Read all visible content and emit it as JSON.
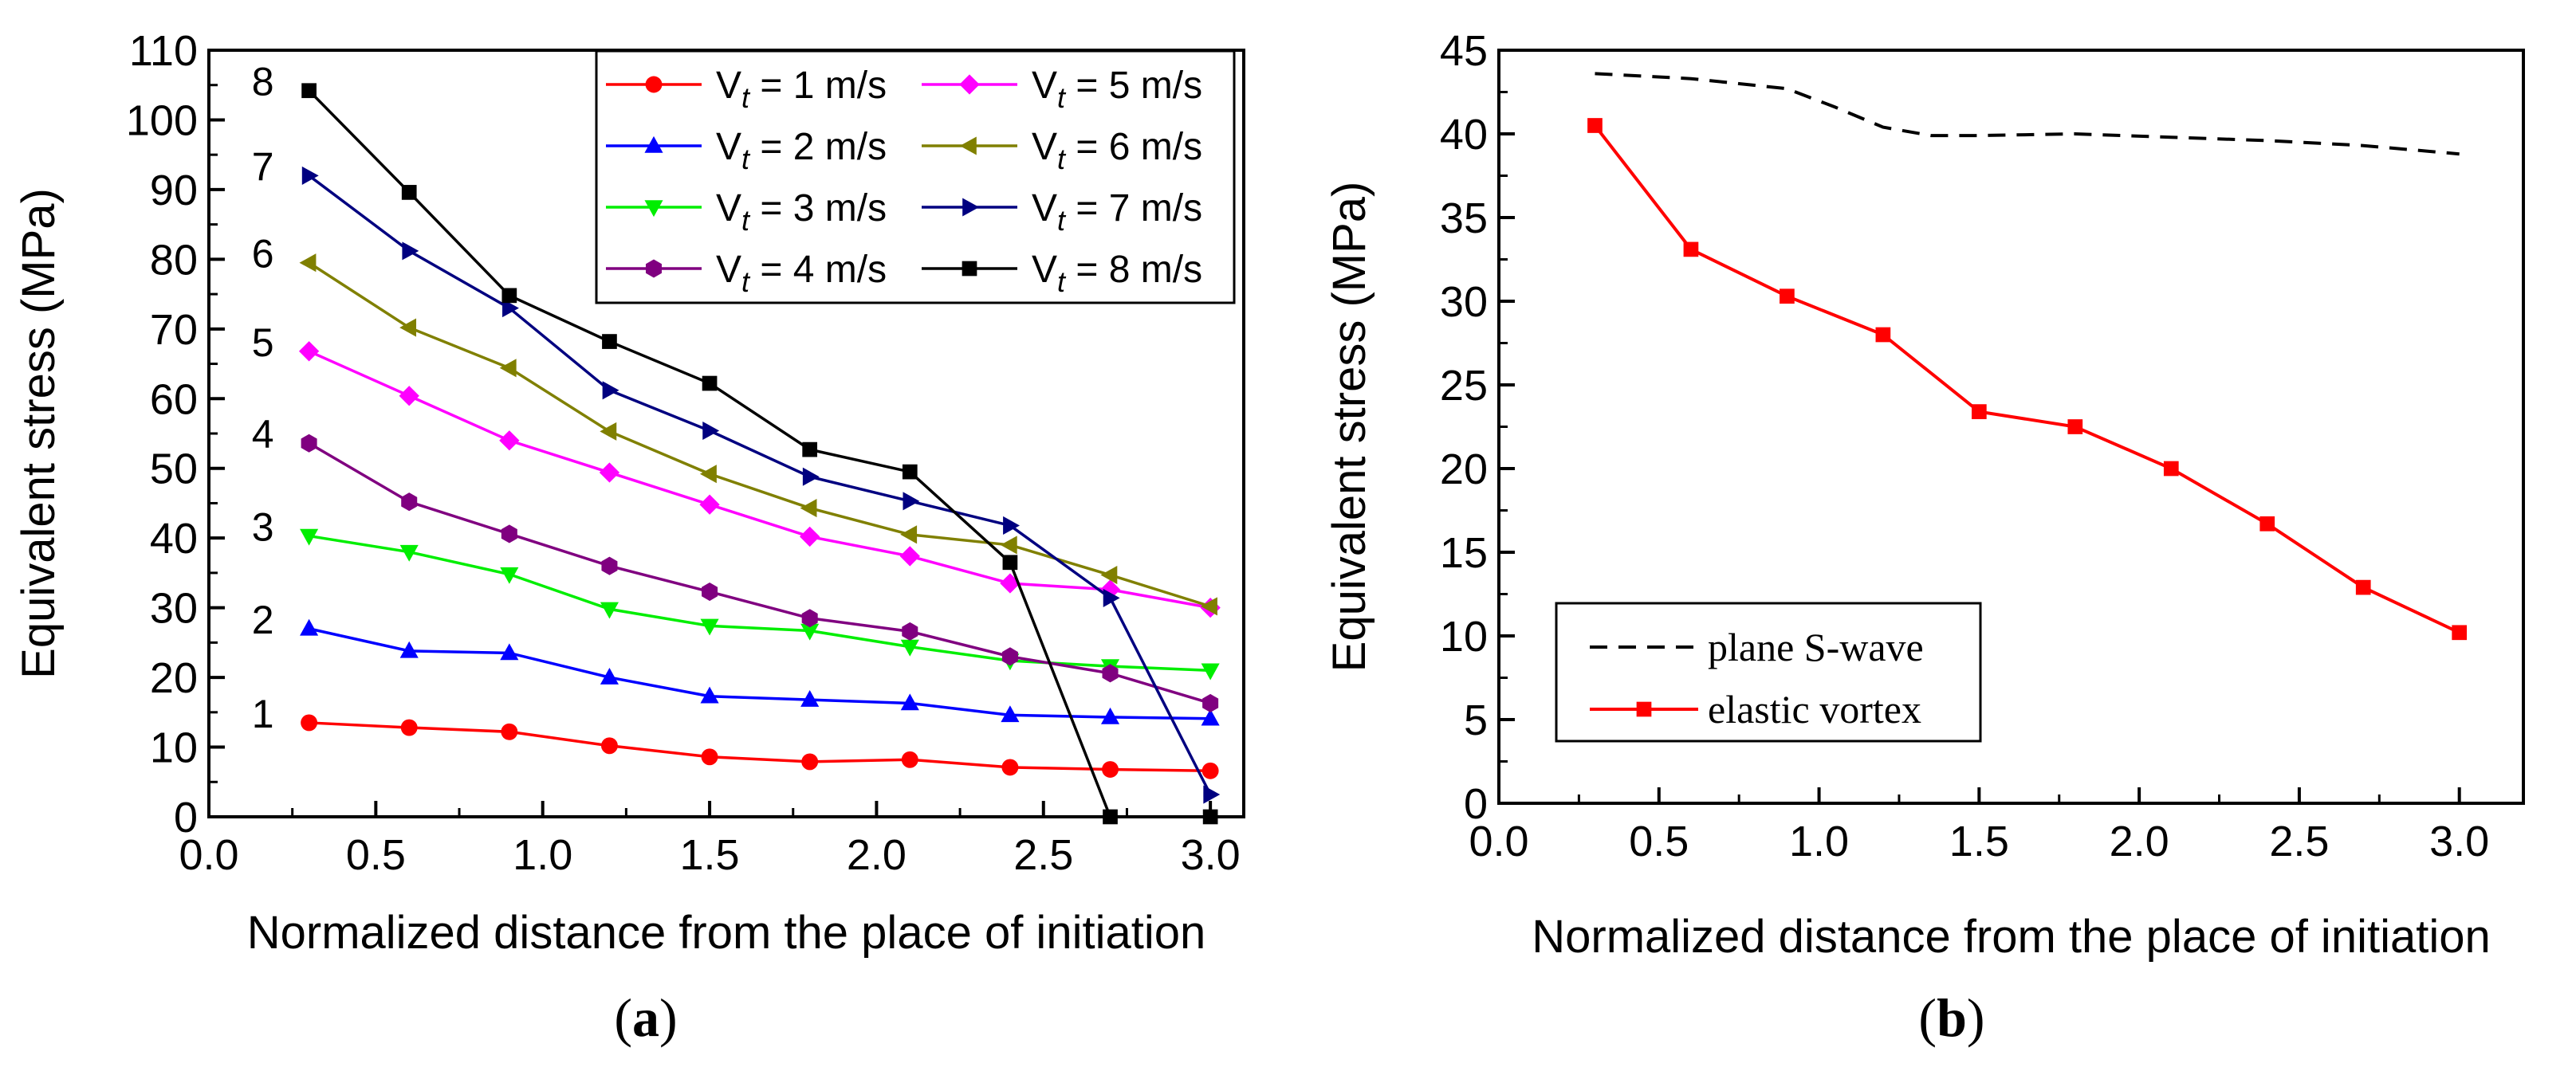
{
  "figure": {
    "panel_a_caption": "a",
    "panel_b_caption": "b"
  },
  "chart_data": [
    {
      "type": "line",
      "panel": "a",
      "xlabel": "Normalized distance from the place of initiation",
      "ylabel": "Equivalent stress (MPa)",
      "xlim": [
        0.0,
        3.1
      ],
      "ylim": [
        0,
        110
      ],
      "xticks": [
        "0.0",
        "0.5",
        "1.0",
        "1.5",
        "2.0",
        "2.5",
        "3.0"
      ],
      "yticks": [
        "0",
        "10",
        "20",
        "30",
        "40",
        "50",
        "60",
        "70",
        "80",
        "90",
        "100",
        "110"
      ],
      "legend_position": "top-right",
      "x": [
        0.3,
        0.6,
        0.9,
        1.2,
        1.5,
        1.8,
        2.1,
        2.4,
        2.7,
        3.0
      ],
      "series": [
        {
          "name": "Vt = 1 m/s",
          "label_prefix": "V",
          "label_sub": "t",
          "label_suffix": " = 1 m/s",
          "end_label": "1",
          "color": "#ff0000",
          "marker": "circle",
          "values": [
            13.5,
            12.8,
            12.2,
            10.2,
            8.6,
            7.9,
            8.2,
            7.1,
            6.8,
            6.6
          ]
        },
        {
          "name": "Vt = 2 m/s",
          "label_prefix": "V",
          "label_sub": "t",
          "label_suffix": " = 2 m/s",
          "end_label": "2",
          "color": "#0000ff",
          "marker": "triangle-up",
          "values": [
            27.0,
            23.8,
            23.5,
            20.0,
            17.3,
            16.8,
            16.3,
            14.6,
            14.3,
            14.1
          ]
        },
        {
          "name": "Vt = 3 m/s",
          "label_prefix": "V",
          "label_sub": "t",
          "label_suffix": " = 3 m/s",
          "end_label": "3",
          "color": "#00ee00",
          "marker": "triangle-down",
          "values": [
            40.3,
            38.0,
            34.8,
            29.8,
            27.4,
            26.7,
            24.4,
            22.4,
            21.6,
            21.0
          ]
        },
        {
          "name": "Vt = 4 m/s",
          "label_prefix": "V",
          "label_sub": "t",
          "label_suffix": " = 4 m/s",
          "end_label": "4",
          "color": "#800080",
          "marker": "hexagon",
          "values": [
            53.6,
            45.2,
            40.6,
            36.0,
            32.3,
            28.5,
            26.6,
            23.0,
            20.6,
            16.3
          ]
        },
        {
          "name": "Vt = 5 m/s",
          "label_prefix": "V",
          "label_sub": "t",
          "label_suffix": " = 5 m/s",
          "end_label": "5",
          "color": "#ff00ff",
          "marker": "diamond",
          "values": [
            66.8,
            60.4,
            54.0,
            49.4,
            44.8,
            40.2,
            37.4,
            33.5,
            32.6,
            30.0
          ]
        },
        {
          "name": "Vt = 6 m/s",
          "label_prefix": "V",
          "label_sub": "t",
          "label_suffix": " = 6 m/s",
          "end_label": "6",
          "color": "#808000",
          "marker": "triangle-left",
          "values": [
            79.5,
            70.2,
            64.4,
            55.3,
            49.2,
            44.3,
            40.5,
            39.0,
            34.7,
            30.2
          ]
        },
        {
          "name": "Vt = 7 m/s",
          "label_prefix": "V",
          "label_sub": "t",
          "label_suffix": " = 7 m/s",
          "end_label": "7",
          "color": "#000080",
          "marker": "triangle-right",
          "values": [
            92.0,
            81.2,
            73.0,
            61.2,
            55.4,
            48.8,
            45.3,
            41.8,
            31.4,
            3.2
          ]
        },
        {
          "name": "Vt = 8 m/s",
          "label_prefix": "V",
          "label_sub": "t",
          "label_suffix": " = 8 m/s",
          "end_label": "8",
          "color": "#000000",
          "marker": "square",
          "values": [
            104.2,
            89.6,
            74.8,
            68.2,
            62.2,
            52.7,
            49.5,
            36.5,
            0.0,
            0.0
          ]
        }
      ]
    },
    {
      "type": "line",
      "panel": "b",
      "xlabel": "Normalized distance from the place of initiation",
      "ylabel": "Equivalent stress (MPa)",
      "xlim": [
        0.0,
        3.2
      ],
      "ylim": [
        0,
        45
      ],
      "xticks": [
        "0.0",
        "0.5",
        "1.0",
        "1.5",
        "2.0",
        "2.5",
        "3.0"
      ],
      "yticks": [
        "0",
        "5",
        "10",
        "15",
        "20",
        "25",
        "30",
        "35",
        "40",
        "45"
      ],
      "legend_position": "bottom-left",
      "series": [
        {
          "name": "plane S-wave",
          "color": "#000000",
          "style": "dashed",
          "marker": "none",
          "x": [
            0.3,
            0.6,
            0.9,
            1.05,
            1.2,
            1.35,
            1.5,
            1.8,
            2.1,
            2.4,
            2.7,
            3.0
          ],
          "values": [
            43.6,
            43.3,
            42.7,
            41.6,
            40.4,
            39.9,
            39.9,
            40.0,
            39.8,
            39.6,
            39.3,
            38.8
          ]
        },
        {
          "name": "elastic vortex",
          "color": "#ff0000",
          "style": "solid",
          "marker": "square",
          "x": [
            0.3,
            0.6,
            0.9,
            1.2,
            1.5,
            1.8,
            2.1,
            2.4,
            2.7,
            3.0
          ],
          "values": [
            40.5,
            33.1,
            30.3,
            28.0,
            23.4,
            22.5,
            20.0,
            16.7,
            12.9,
            10.2
          ]
        }
      ]
    }
  ]
}
